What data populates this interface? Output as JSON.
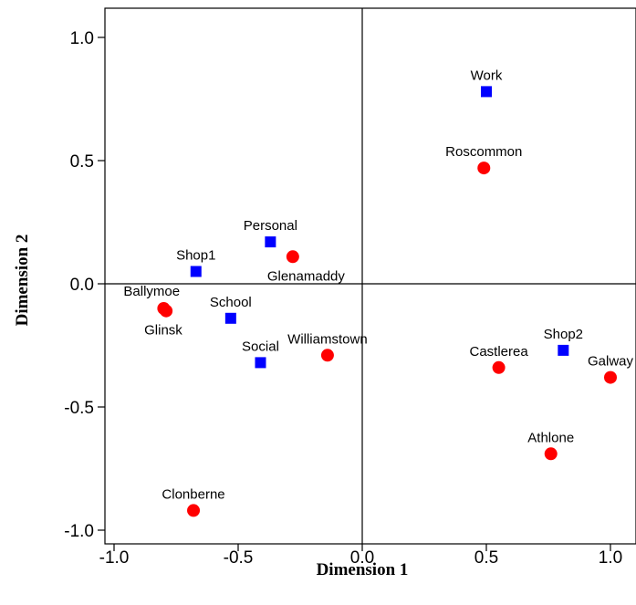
{
  "chart_data": {
    "type": "scatter",
    "title": "",
    "xlabel": "Dimension 1",
    "ylabel": "Dimension 2",
    "xlim": [
      -1.1,
      1.1
    ],
    "ylim": [
      -1.1,
      1.1
    ],
    "x_ticks": [
      "-1.0",
      "-0.5",
      "0.0",
      "0.5",
      "1.0"
    ],
    "y_ticks": [
      "1.0",
      "0.5",
      "0.0",
      "-0.5",
      "-1.0"
    ],
    "grid": false,
    "reference_lines": {
      "x": 0,
      "y": 0
    },
    "series": [
      {
        "marker": "square",
        "color": "#0000ff",
        "points": [
          {
            "label": "Work",
            "x": 0.5,
            "y": 0.78
          },
          {
            "label": "Personal",
            "x": -0.37,
            "y": 0.17
          },
          {
            "label": "Shop1",
            "x": -0.67,
            "y": 0.05
          },
          {
            "label": "School",
            "x": -0.53,
            "y": -0.14
          },
          {
            "label": "Social",
            "x": -0.41,
            "y": -0.32
          },
          {
            "label": "Shop2",
            "x": 0.81,
            "y": -0.27
          }
        ]
      },
      {
        "marker": "circle",
        "color": "#ff0000",
        "points": [
          {
            "label": "Roscommon",
            "x": 0.49,
            "y": 0.47
          },
          {
            "label": "Glenamaddy",
            "x": -0.28,
            "y": 0.11
          },
          {
            "label": "Ballymoe",
            "x": -0.8,
            "y": -0.1
          },
          {
            "label": "Glinsk",
            "x": -0.79,
            "y": -0.11
          },
          {
            "label": "Williamstown",
            "x": -0.14,
            "y": -0.29
          },
          {
            "label": "Castlerea",
            "x": 0.55,
            "y": -0.34
          },
          {
            "label": "Galway",
            "x": 1.0,
            "y": -0.38
          },
          {
            "label": "Athlone",
            "x": 0.76,
            "y": -0.69
          },
          {
            "label": "Clonberne",
            "x": -0.68,
            "y": -0.92
          }
        ]
      }
    ]
  }
}
